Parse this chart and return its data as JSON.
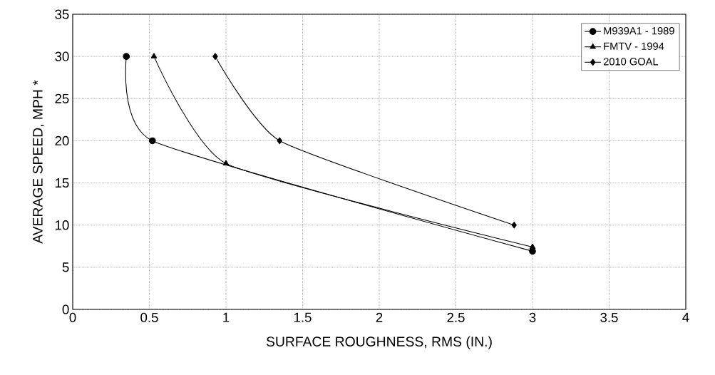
{
  "chart_data": {
    "type": "line",
    "xlabel": "SURFACE ROUGHNESS, RMS (IN.)",
    "ylabel": "AVERAGE SPEED, MPH *",
    "xlim": [
      0,
      4
    ],
    "xticks": [
      0,
      {
        "value": 0.5,
        "label": "0.5"
      },
      1,
      {
        "value": 1.5,
        "label": "1.5"
      },
      2,
      {
        "value": 2.5,
        "label": "2.5"
      },
      3,
      {
        "value": 3.5,
        "label": "3.5"
      },
      4
    ],
    "ylim": [
      0,
      35
    ],
    "yticks": [
      0,
      5,
      10,
      15,
      20,
      25,
      30,
      35
    ],
    "grid": true,
    "legend": "top right",
    "line_style": "solid",
    "series": [
      {
        "name": "M939A1 - 1989",
        "color": "#000000",
        "marker": "circle",
        "x": [
          0.35,
          0.52,
          3.0
        ],
        "values": [
          30,
          20,
          6.9
        ]
      },
      {
        "name": "FMTV - 1994",
        "color": "#000000",
        "marker": "triangle",
        "x": [
          0.53,
          1.0,
          3.0
        ],
        "values": [
          30,
          17.3,
          7.4
        ]
      },
      {
        "name": "2010 GOAL",
        "color": "#000000",
        "marker": "diamond",
        "x": [
          0.93,
          1.35,
          2.88
        ],
        "values": [
          30,
          20,
          10
        ]
      }
    ]
  }
}
